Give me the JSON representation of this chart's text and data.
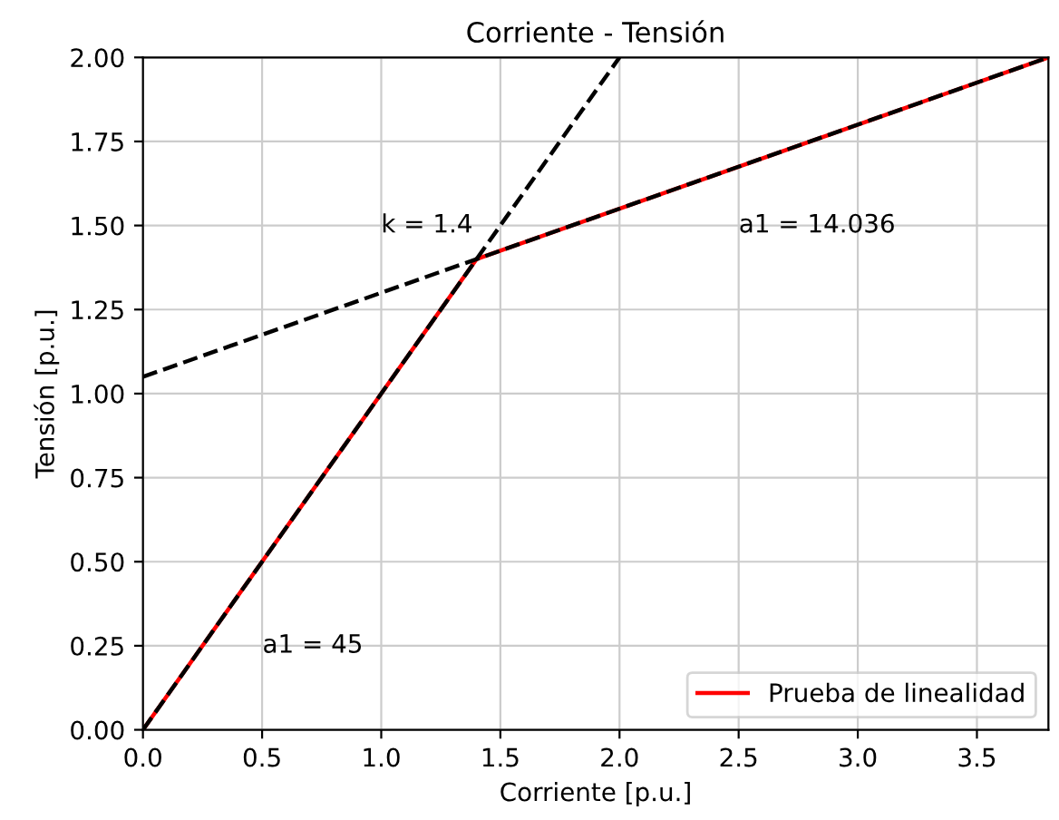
{
  "chart_data": {
    "type": "line",
    "title": "Corriente - Tensión",
    "xlabel": "Corriente [p.u.]",
    "ylabel": "Tensión [p.u.]",
    "series": [
      {
        "name": "Prueba de linealidad",
        "color": "#ff0000",
        "x": [
          0,
          1.4,
          3.8
        ],
        "values": [
          0,
          1.4,
          2.0
        ],
        "line_style": "solid"
      },
      {
        "color": "#000000",
        "x": [
          0,
          2.0
        ],
        "values": [
          0,
          2.0
        ],
        "line_style": "dashed"
      },
      {
        "color": "#000000",
        "x": [
          0,
          3.8
        ],
        "values": [
          1.05,
          2.0
        ],
        "line_style": "dashed"
      }
    ],
    "annotations": [
      "k = 1.4",
      "a1 = 14.036",
      "a1 = 45"
    ],
    "xlim": [
      0,
      3.8
    ],
    "ylim": [
      0,
      2.0
    ],
    "xticks": [
      {
        "value": 0,
        "label": "0.0"
      },
      0.5,
      {
        "value": 1,
        "label": "1.0"
      },
      1.5,
      {
        "value": 2,
        "label": "2.0"
      },
      2.5,
      {
        "value": 3,
        "label": "3.0"
      },
      3.5
    ],
    "yticks": [
      {
        "value": 0,
        "label": "0.00"
      },
      0.25,
      {
        "value": 0.5,
        "label": "0.50"
      },
      0.75,
      {
        "value": 1,
        "label": "1.00"
      },
      1.25,
      {
        "value": 1.5,
        "label": "1.50"
      },
      1.75,
      {
        "value": 2,
        "label": "2.00"
      }
    ],
    "grid": true,
    "legend": "bottom right",
    "marker": "none"
  }
}
